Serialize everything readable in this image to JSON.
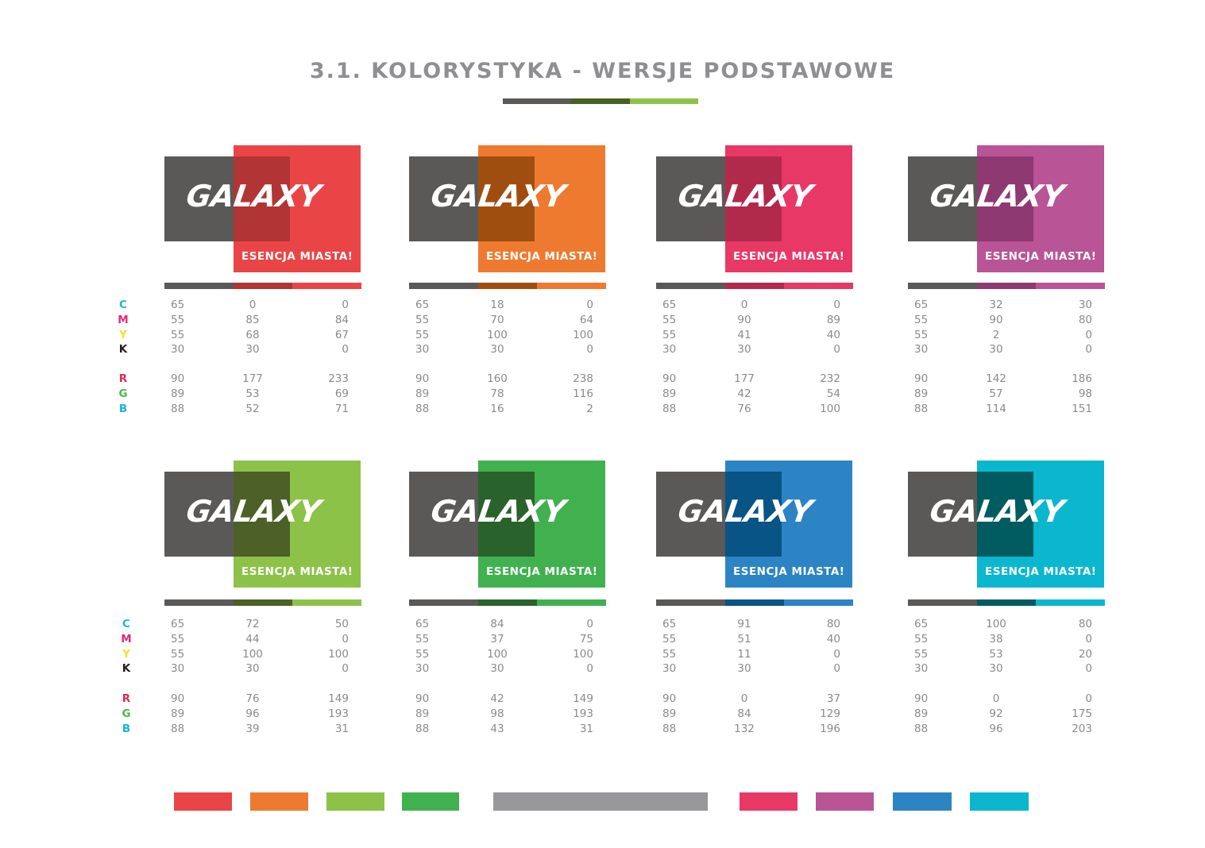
{
  "title": "3.1. KOLORYSTYKA - WERSJE PODSTAWOWE",
  "title_bar_colors": [
    "#5a5958",
    "#4a5f26",
    "#8dc249"
  ],
  "dark_color": "#5a5958",
  "logo_word": "GALAXY",
  "slogan": "ESENCJA MIASTA!",
  "labels": {
    "cmyk": [
      {
        "text": "C",
        "color": "#19b7d9"
      },
      {
        "text": "M",
        "color": "#e6267c"
      },
      {
        "text": "Y",
        "color": "#f3e12a"
      },
      {
        "text": "K",
        "color": "#231f20"
      }
    ],
    "rgb": [
      {
        "text": "R",
        "color": "#e6284f"
      },
      {
        "text": "G",
        "color": "#4bb74a"
      },
      {
        "text": "B",
        "color": "#1ab2d8"
      }
    ]
  },
  "variants": [
    {
      "name": "red",
      "main": "#e94547",
      "overlap": "#b13534",
      "cmyk": [
        [
          65,
          55,
          55,
          30
        ],
        [
          0,
          85,
          68,
          30
        ],
        [
          0,
          84,
          67,
          0
        ]
      ],
      "rgb": [
        [
          90,
          89,
          88
        ],
        [
          177,
          53,
          52
        ],
        [
          233,
          69,
          71
        ]
      ]
    },
    {
      "name": "orange",
      "main": "#ee7a30",
      "overlap": "#a04e10",
      "cmyk": [
        [
          65,
          55,
          55,
          30
        ],
        [
          18,
          70,
          100,
          30
        ],
        [
          0,
          64,
          100,
          0
        ]
      ],
      "rgb": [
        [
          90,
          89,
          88
        ],
        [
          160,
          78,
          16
        ],
        [
          238,
          116,
          2
        ]
      ]
    },
    {
      "name": "pink",
      "main": "#e83866",
      "overlap": "#b12a4c",
      "cmyk": [
        [
          65,
          55,
          55,
          30
        ],
        [
          0,
          90,
          41,
          30
        ],
        [
          0,
          89,
          40,
          0
        ]
      ],
      "rgb": [
        [
          90,
          89,
          88
        ],
        [
          177,
          42,
          76
        ],
        [
          232,
          54,
          100
        ]
      ]
    },
    {
      "name": "purple",
      "main": "#b95496",
      "overlap": "#8e3972",
      "cmyk": [
        [
          65,
          55,
          55,
          30
        ],
        [
          32,
          90,
          2,
          30
        ],
        [
          30,
          80,
          0,
          0
        ]
      ],
      "rgb": [
        [
          90,
          89,
          88
        ],
        [
          142,
          57,
          114
        ],
        [
          186,
          98,
          151
        ]
      ]
    },
    {
      "name": "lime",
      "main": "#8dc249",
      "overlap": "#4c6027",
      "cmyk": [
        [
          65,
          55,
          55,
          30
        ],
        [
          72,
          44,
          100,
          30
        ],
        [
          50,
          0,
          100,
          0
        ]
      ],
      "rgb": [
        [
          90,
          89,
          88
        ],
        [
          76,
          96,
          39
        ],
        [
          149,
          193,
          31
        ]
      ]
    },
    {
      "name": "green",
      "main": "#41b14f",
      "overlap": "#2a622b",
      "cmyk": [
        [
          65,
          55,
          55,
          30
        ],
        [
          84,
          37,
          100,
          30
        ],
        [
          0,
          75,
          100,
          0
        ]
      ],
      "rgb": [
        [
          90,
          89,
          88
        ],
        [
          42,
          98,
          43
        ],
        [
          149,
          193,
          31
        ]
      ]
    },
    {
      "name": "blue",
      "main": "#2c84c4",
      "overlap": "#085484",
      "cmyk": [
        [
          65,
          55,
          55,
          30
        ],
        [
          91,
          51,
          11,
          30
        ],
        [
          80,
          40,
          0,
          0
        ]
      ],
      "rgb": [
        [
          90,
          89,
          88
        ],
        [
          0,
          84,
          132
        ],
        [
          37,
          129,
          196
        ]
      ]
    },
    {
      "name": "cyan",
      "main": "#0bb7cf",
      "overlap": "#005c60",
      "cmyk": [
        [
          65,
          55,
          55,
          30
        ],
        [
          100,
          38,
          53,
          30
        ],
        [
          80,
          0,
          20,
          0
        ]
      ],
      "rgb": [
        [
          90,
          89,
          88
        ],
        [
          0,
          92,
          96
        ],
        [
          0,
          175,
          203
        ]
      ]
    }
  ],
  "swatches": [
    "#e94547",
    "#ee7a30",
    "#8dc249",
    "#41b14f",
    "#98989b",
    "#e83866",
    "#b95496",
    "#2c84c4",
    "#0bb7cf"
  ]
}
